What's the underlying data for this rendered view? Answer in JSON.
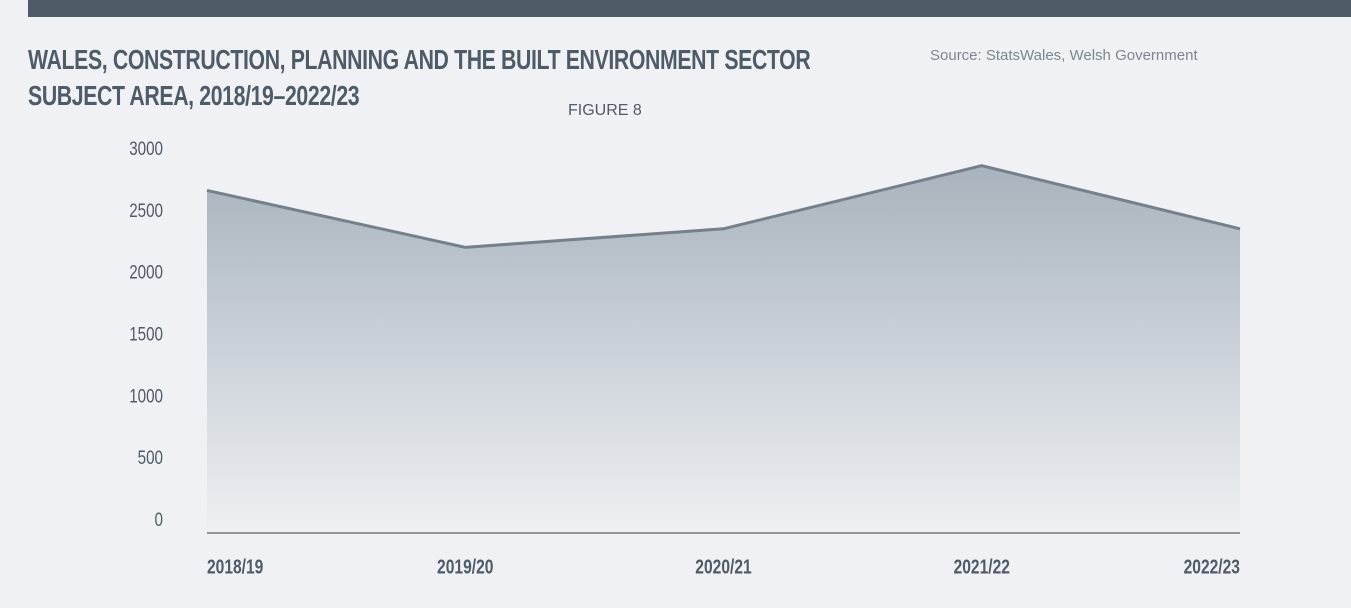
{
  "chart_data": {
    "type": "area",
    "title": "WALES, CONSTRUCTION, PLANNING AND THE BUILT ENVIRONMENT SECTOR SUBJECT AREA, 2018/19–2022/23",
    "figure_label": "FIGURE 8",
    "source": "Source: StatsWales, Welsh Government",
    "categories": [
      "2018/19",
      "2019/20",
      "2020/21",
      "2021/22",
      "2022/23"
    ],
    "values": [
      2770,
      2310,
      2460,
      2970,
      2460
    ],
    "color": "#75808a",
    "ylim": [
      0,
      3000
    ],
    "yticks": [
      0,
      500,
      1000,
      1500,
      2000,
      2500,
      3000
    ],
    "grid": false
  }
}
